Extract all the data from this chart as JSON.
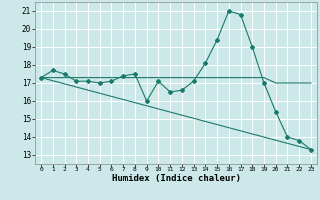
{
  "title": "",
  "xlabel": "Humidex (Indice chaleur)",
  "xlim": [
    -0.5,
    23.5
  ],
  "ylim": [
    12.5,
    21.5
  ],
  "yticks": [
    13,
    14,
    15,
    16,
    17,
    18,
    19,
    20,
    21
  ],
  "xticks": [
    0,
    1,
    2,
    3,
    4,
    5,
    6,
    7,
    8,
    9,
    10,
    11,
    12,
    13,
    14,
    15,
    16,
    17,
    18,
    19,
    20,
    21,
    22,
    23
  ],
  "bg_color": "#cce8e8",
  "grid_color": "#ffffff",
  "line_color": "#1a7a6a",
  "lines": [
    {
      "x": [
        0,
        1,
        2,
        3,
        4,
        5,
        6,
        7,
        8,
        9,
        10,
        11,
        12,
        13,
        14,
        15,
        16,
        17,
        18,
        19,
        20,
        21,
        22,
        23
      ],
      "y": [
        17.3,
        17.7,
        17.5,
        17.1,
        17.1,
        17.0,
        17.1,
        17.4,
        17.5,
        16.0,
        17.1,
        16.5,
        16.6,
        17.1,
        18.1,
        19.4,
        21.0,
        20.8,
        19.0,
        17.0,
        15.4,
        14.0,
        13.8,
        13.3
      ],
      "marker": true
    },
    {
      "x": [
        0,
        1,
        2,
        3,
        4,
        5,
        6,
        7,
        8,
        9,
        10,
        11,
        12,
        13,
        14,
        15,
        16,
        17,
        18,
        19,
        20,
        21,
        22,
        23
      ],
      "y": [
        17.3,
        17.3,
        17.3,
        17.3,
        17.3,
        17.3,
        17.3,
        17.3,
        17.3,
        17.3,
        17.3,
        17.3,
        17.3,
        17.3,
        17.3,
        17.3,
        17.3,
        17.3,
        17.3,
        17.3,
        17.0,
        17.0,
        17.0,
        17.0
      ],
      "marker": false
    },
    {
      "x": [
        0,
        23
      ],
      "y": [
        17.3,
        13.3
      ],
      "marker": false
    }
  ]
}
